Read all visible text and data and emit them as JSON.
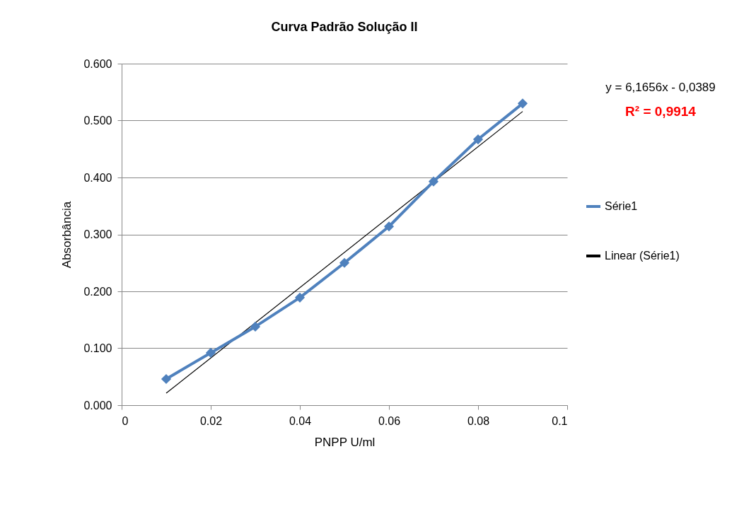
{
  "chart_data": {
    "type": "line",
    "title": "Curva Padrão Solução II",
    "xlabel": "PNPP U/ml",
    "ylabel": "Absorbância",
    "x": [
      0.01,
      0.02,
      0.03,
      0.04,
      0.05,
      0.06,
      0.07,
      0.08,
      0.09
    ],
    "series": [
      {
        "name": "Série1",
        "color": "#4f81bd",
        "values": [
          0.046,
          0.092,
          0.138,
          0.189,
          0.25,
          0.314,
          0.393,
          0.467,
          0.53
        ],
        "marker": "diamond"
      },
      {
        "name": "Linear (Série1)",
        "color": "#000000",
        "type": "line",
        "x": [
          0.01,
          0.09
        ],
        "values": [
          0.021,
          0.516
        ],
        "marker": "none"
      }
    ],
    "xlim": [
      0,
      0.1
    ],
    "xticks": [
      0,
      0.02,
      0.04,
      0.06,
      0.08,
      0.1
    ],
    "ylim": [
      0,
      0.6
    ],
    "yticks": [
      {
        "value": 0,
        "label": "0.000"
      },
      {
        "value": 0.1,
        "label": "0.100"
      },
      {
        "value": 0.2,
        "label": "0.200"
      },
      {
        "value": 0.3,
        "label": "0.300"
      },
      {
        "value": 0.4,
        "label": "0.400"
      },
      {
        "value": 0.5,
        "label": "0.500"
      },
      {
        "value": 0.6,
        "label": "0.600"
      }
    ],
    "grid": "y",
    "legend": "right",
    "line_style": "solid",
    "annotations": [
      "y = 6,1656x - 0,0389",
      "R² = 0,9914"
    ]
  }
}
